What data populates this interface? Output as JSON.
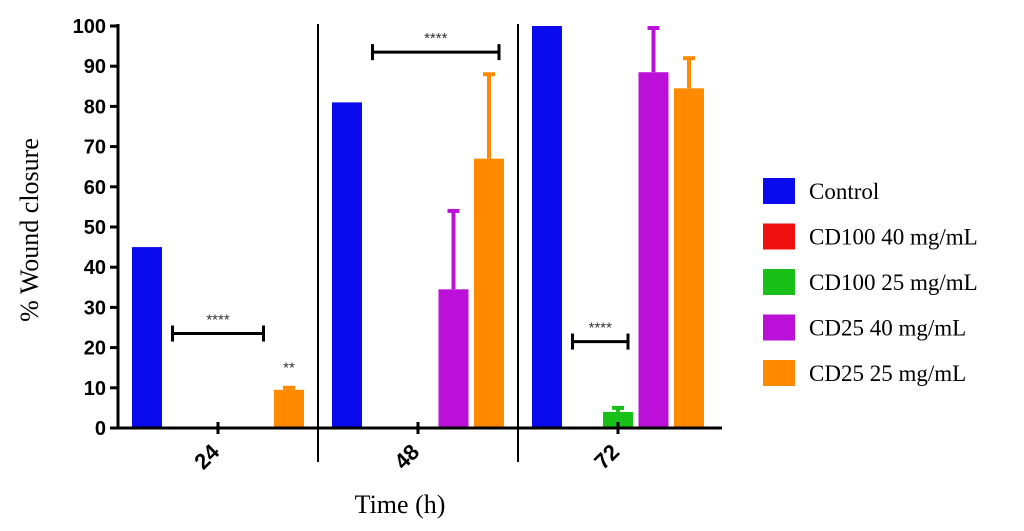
{
  "chart_data": {
    "type": "bar",
    "title": "",
    "xlabel": "Time (h)",
    "ylabel": "% Wound closure",
    "ylim": [
      0,
      100
    ],
    "yticks": [
      0,
      10,
      20,
      30,
      40,
      50,
      60,
      70,
      80,
      90,
      100
    ],
    "categories": [
      "24",
      "48",
      "72"
    ],
    "series": [
      {
        "name": "Control",
        "color": "#0a0aee",
        "values": [
          45,
          81,
          100
        ],
        "errors": [
          0,
          0,
          0
        ]
      },
      {
        "name": "CD100 40 mg/mL",
        "color": "#f01010",
        "values": [
          0,
          0,
          0
        ],
        "errors": [
          0,
          0,
          0
        ]
      },
      {
        "name": "CD100 25 mg/mL",
        "color": "#18c018",
        "values": [
          0,
          0,
          4
        ],
        "errors": [
          0,
          0,
          1
        ]
      },
      {
        "name": "CD25 40 mg/mL",
        "color": "#bb10d8",
        "values": [
          0,
          34.5,
          88.5
        ],
        "errors": [
          0,
          19.5,
          11
        ]
      },
      {
        "name": "CD25 25 mg/mL",
        "color": "#ff8a00",
        "values": [
          9.5,
          67,
          84.5
        ],
        "errors": [
          0.5,
          21,
          7.5
        ]
      }
    ],
    "significance": [
      {
        "category": "24",
        "label": "****",
        "from_series": 1,
        "to_series": 3,
        "y": 23.5
      },
      {
        "category": "24",
        "label": "**",
        "series": 4,
        "y": 15
      },
      {
        "category": "48",
        "label": "****",
        "from_series": 1,
        "to_series": 4,
        "y": 93.5
      },
      {
        "category": "72",
        "label": "****",
        "from_series": 1,
        "to_series": 2,
        "y": 21.5
      }
    ],
    "legend_position": "right"
  }
}
